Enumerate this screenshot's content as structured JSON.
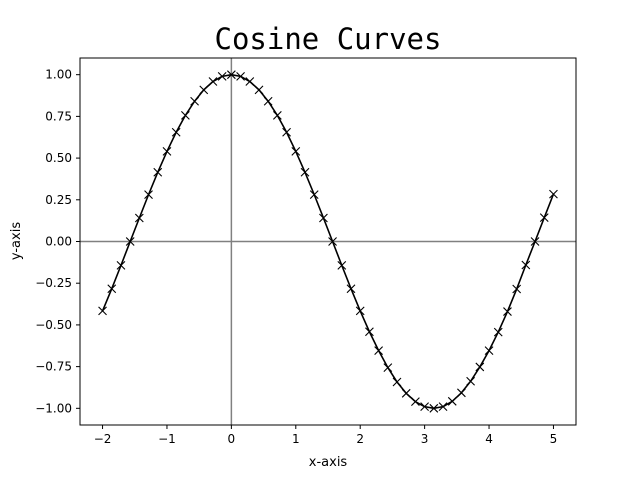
{
  "chart_data": {
    "type": "line",
    "title": "Cosine Curves",
    "xlabel": "x-axis",
    "ylabel": "y-axis",
    "xlim": [
      -2.35,
      5.35
    ],
    "ylim": [
      -1.1,
      1.1
    ],
    "xticks": [
      -2,
      -1,
      0,
      1,
      2,
      3,
      4,
      5
    ],
    "xtick_labels": [
      "−2",
      "−1",
      "0",
      "1",
      "2",
      "3",
      "4",
      "5"
    ],
    "yticks": [
      -1.0,
      -0.75,
      -0.5,
      -0.25,
      0.0,
      0.25,
      0.5,
      0.75,
      1.0
    ],
    "ytick_labels": [
      "−1.00",
      "−0.75",
      "−0.50",
      "−0.25",
      "0.00",
      "0.25",
      "0.50",
      "0.75",
      "1.00"
    ],
    "grid": false,
    "reference_lines": {
      "x": 0,
      "y": 0,
      "color": "#808080"
    },
    "series": [
      {
        "color": "#000000",
        "marker": "x",
        "x": [
          -2.0,
          -1.857,
          -1.714,
          -1.571,
          -1.429,
          -1.286,
          -1.143,
          -1.0,
          -0.857,
          -0.714,
          -0.571,
          -0.429,
          -0.286,
          -0.143,
          0.0,
          0.143,
          0.286,
          0.429,
          0.571,
          0.714,
          0.857,
          1.0,
          1.143,
          1.286,
          1.429,
          1.571,
          1.714,
          1.857,
          2.0,
          2.143,
          2.286,
          2.429,
          2.571,
          2.714,
          2.857,
          3.0,
          3.143,
          3.286,
          3.429,
          3.571,
          3.714,
          3.857,
          4.0,
          4.143,
          4.286,
          4.429,
          4.571,
          4.714,
          4.857,
          5.0
        ],
        "y": [
          -0.416,
          -0.283,
          -0.143,
          0.0,
          0.141,
          0.281,
          0.415,
          0.54,
          0.655,
          0.756,
          0.841,
          0.909,
          0.959,
          0.99,
          1.0,
          0.99,
          0.959,
          0.909,
          0.841,
          0.756,
          0.655,
          0.54,
          0.415,
          0.281,
          0.141,
          0.0,
          -0.143,
          -0.283,
          -0.416,
          -0.541,
          -0.654,
          -0.756,
          -0.842,
          -0.91,
          -0.96,
          -0.99,
          -1.0,
          -0.99,
          -0.958,
          -0.907,
          -0.838,
          -0.752,
          -0.654,
          -0.543,
          -0.42,
          -0.285,
          -0.141,
          0.0,
          0.143,
          0.284
        ]
      }
    ]
  }
}
